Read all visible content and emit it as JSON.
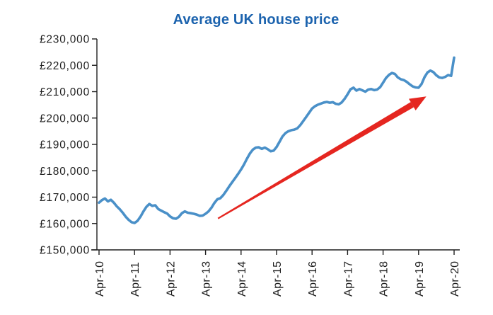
{
  "chart_data": {
    "type": "line",
    "title": "Average UK house price",
    "title_color": "#1c63ae",
    "line_color": "#4a90c8",
    "axis_color": "#1f1f1f",
    "background_color": "#ffffff",
    "grid": false,
    "legend": "none",
    "xlabel": "",
    "ylabel": "",
    "ylim": [
      150000,
      230000
    ],
    "x_range": [
      "Apr-10",
      "Apr-20"
    ],
    "x_frequency": "monthly",
    "y_ticks": [
      {
        "value": 230000,
        "label": "£230,000"
      },
      {
        "value": 220000,
        "label": "£220,000"
      },
      {
        "value": 210000,
        "label": "£210,000"
      },
      {
        "value": 200000,
        "label": "£200,000"
      },
      {
        "value": 190000,
        "label": "£190,000"
      },
      {
        "value": 180000,
        "label": "£180,000"
      },
      {
        "value": 170000,
        "label": "£170,000"
      },
      {
        "value": 160000,
        "label": "£160,000"
      },
      {
        "value": 150000,
        "label": "£150,000"
      }
    ],
    "x_ticks": [
      {
        "month_index": 0,
        "label": "Apr-10"
      },
      {
        "month_index": 12,
        "label": "Apr-11"
      },
      {
        "month_index": 24,
        "label": "Apr-12"
      },
      {
        "month_index": 36,
        "label": "Apr-13"
      },
      {
        "month_index": 48,
        "label": "Apr-14"
      },
      {
        "month_index": 60,
        "label": "Apr-15"
      },
      {
        "month_index": 72,
        "label": "Apr-16"
      },
      {
        "month_index": 84,
        "label": "Apr-17"
      },
      {
        "month_index": 96,
        "label": "Apr-18"
      },
      {
        "month_index": 108,
        "label": "Apr-19"
      },
      {
        "month_index": 120,
        "label": "Apr-20"
      }
    ],
    "series": [
      {
        "name": "Average UK house price",
        "start_month": "Apr-10",
        "values": [
          167900,
          168900,
          169500,
          168400,
          169000,
          167900,
          166500,
          165400,
          164100,
          162600,
          161400,
          160500,
          160200,
          161000,
          162600,
          164600,
          166300,
          167400,
          166700,
          166900,
          165500,
          164900,
          164300,
          163800,
          162700,
          162000,
          161800,
          162500,
          163900,
          164600,
          164100,
          163900,
          163700,
          163400,
          162900,
          163000,
          163700,
          164600,
          166000,
          167800,
          169200,
          169600,
          170800,
          172400,
          174100,
          175700,
          177200,
          178800,
          180500,
          182400,
          184600,
          186600,
          188000,
          188800,
          188900,
          188300,
          188800,
          188200,
          187400,
          187600,
          189000,
          191000,
          193000,
          194300,
          195000,
          195400,
          195600,
          196100,
          197300,
          198800,
          200400,
          202000,
          203600,
          204500,
          205100,
          205500,
          205900,
          206100,
          205800,
          206000,
          205400,
          205200,
          205900,
          207300,
          209000,
          210900,
          211500,
          210400,
          211000,
          210500,
          210000,
          210800,
          211000,
          210600,
          210800,
          211700,
          213400,
          215200,
          216400,
          217100,
          216700,
          215400,
          214700,
          214400,
          213700,
          212800,
          212000,
          211600,
          211500,
          212900,
          215500,
          217300,
          218000,
          217400,
          216200,
          215400,
          215200,
          215600,
          216300,
          216000,
          222900
        ]
      }
    ],
    "annotation_arrow": {
      "description": "upward trend arrow",
      "color": "#e52620",
      "from": {
        "month_index": 40.2,
        "value": 161900
      },
      "to": {
        "month_index": 110.6,
        "value": 208200
      }
    }
  }
}
